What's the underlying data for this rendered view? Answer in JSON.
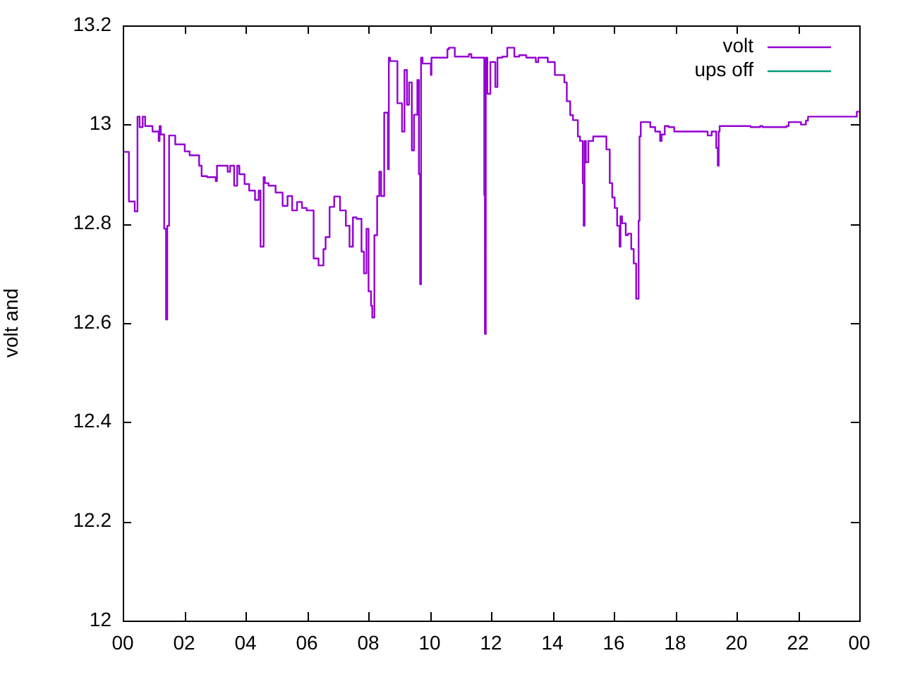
{
  "chart_data": {
    "type": "step",
    "ylabel": "volt and",
    "legend": "top right",
    "grid": false,
    "marker": "none",
    "xlim": [
      0,
      24
    ],
    "xticks": [
      {
        "value": 0,
        "label": "00"
      },
      {
        "value": 2,
        "label": "02"
      },
      {
        "value": 4,
        "label": "04"
      },
      {
        "value": 6,
        "label": "06"
      },
      {
        "value": 8,
        "label": "08"
      },
      {
        "value": 10,
        "label": "10"
      },
      {
        "value": 12,
        "label": "12"
      },
      {
        "value": 14,
        "label": "14"
      },
      {
        "value": 16,
        "label": "16"
      },
      {
        "value": 18,
        "label": "18"
      },
      {
        "value": 20,
        "label": "20"
      },
      {
        "value": 22,
        "label": "22"
      },
      {
        "value": 24,
        "label": "00"
      }
    ],
    "ylim": [
      12,
      13.2
    ],
    "yticks": [
      12,
      12.2,
      12.4,
      12.6,
      12.8,
      13,
      13.2
    ],
    "series": [
      {
        "name": "volt",
        "color": "#9400d3",
        "x": [
          0,
          0.02,
          0.2,
          0.39,
          0.48,
          0.55,
          0.65,
          0.73,
          0.8,
          0.97,
          1.17,
          1.2,
          1.24,
          1.35,
          1.41,
          1.45,
          1.51,
          1.53,
          1.71,
          1.82,
          2.02,
          2.18,
          2.33,
          2.49,
          2.57,
          2.75,
          3.03,
          3.07,
          3.14,
          3.42,
          3.5,
          3.63,
          3.73,
          3.8,
          3.97,
          4.12,
          4.31,
          4.43,
          4.49,
          4.59,
          4.63,
          4.75,
          4.98,
          5.21,
          5.37,
          5.52,
          5.68,
          5.84,
          5.99,
          6.22,
          6.38,
          6.54,
          6.61,
          6.74,
          6.89,
          7.08,
          7.27,
          7.39,
          7.5,
          7.62,
          7.78,
          7.86,
          7.94,
          8.01,
          8.09,
          8.13,
          8.2,
          8.29,
          8.36,
          8.42,
          8.52,
          8.6,
          8.64,
          8.67,
          8.71,
          8.95,
          9.1,
          9.18,
          9.26,
          9.33,
          9.42,
          9.49,
          9.6,
          9.65,
          9.69,
          9.72,
          9.77,
          10.04,
          10.06,
          10.27,
          10.58,
          10.63,
          10.82,
          11.0,
          11.28,
          11.36,
          11.44,
          11.78,
          11.8,
          11.83,
          11.88,
          11.98,
          12.14,
          12.21,
          12.37,
          12.53,
          12.68,
          12.76,
          12.92,
          13.15,
          13.46,
          13.54,
          13.85,
          14.08,
          14.24,
          14.39,
          14.47,
          14.58,
          14.67,
          14.83,
          14.9,
          14.99,
          15.02,
          15.05,
          15.09,
          15.17,
          15.33,
          15.48,
          15.76,
          15.87,
          15.95,
          16.03,
          16.11,
          16.19,
          16.22,
          16.27,
          16.39,
          16.46,
          16.57,
          16.65,
          16.73,
          16.81,
          16.84,
          16.88,
          16.96,
          17.19,
          17.35,
          17.51,
          17.56,
          17.66,
          17.79,
          17.97,
          18.13,
          19.06,
          19.19,
          19.34,
          19.39,
          19.42,
          19.45,
          20.46,
          20.77,
          20.85,
          21.63,
          21.7,
          22.1,
          22.26,
          22.33,
          22.61,
          23.92,
          24
        ],
        "values": [
          12.853,
          12.957,
          12.945,
          12.845,
          12.825,
          13.016,
          12.995,
          13.016,
          12.997,
          12.997,
          12.986,
          12.967,
          12.997,
          12.98,
          12.79,
          12.607,
          12.796,
          12.978,
          12.978,
          12.96,
          12.96,
          12.946,
          12.938,
          12.938,
          12.917,
          12.896,
          12.894,
          12.886,
          12.917,
          12.917,
          12.905,
          12.917,
          12.877,
          12.917,
          12.9,
          12.88,
          12.867,
          12.848,
          12.867,
          12.754,
          12.894,
          12.882,
          12.877,
          12.863,
          12.836,
          12.856,
          12.827,
          12.844,
          12.832,
          12.827,
          12.73,
          12.716,
          12.749,
          12.773,
          12.834,
          12.855,
          12.827,
          12.796,
          12.754,
          12.813,
          12.81,
          12.744,
          12.7,
          12.79,
          12.664,
          12.635,
          12.611,
          12.777,
          12.856,
          12.905,
          12.856,
          13.024,
          13.024,
          12.91,
          13.135,
          13.128,
          13.043,
          12.986,
          13.11,
          13.04,
          13.085,
          12.948,
          13.02,
          13.09,
          12.9,
          12.678,
          13.135,
          13.123,
          13.1,
          13.135,
          13.135,
          13.152,
          13.155,
          13.137,
          13.137,
          13.142,
          13.135,
          13.135,
          12.858,
          12.578,
          13.135,
          13.062,
          13.126,
          13.076,
          13.135,
          13.137,
          13.155,
          13.155,
          13.137,
          13.14,
          13.135,
          13.126,
          13.135,
          13.126,
          13.1,
          13.1,
          13.085,
          13.047,
          13.019,
          13.009,
          12.976,
          12.967,
          12.882,
          12.796,
          12.967,
          12.924,
          12.967,
          12.976,
          12.976,
          12.95,
          12.882,
          12.853,
          12.832,
          12.796,
          12.754,
          12.815,
          12.801,
          12.777,
          12.78,
          12.749,
          12.72,
          12.649,
          12.806,
          12.976,
          13.005,
          13.005,
          12.995,
          12.986,
          12.967,
          12.98,
          12.997,
          12.995,
          12.986,
          12.986,
          12.978,
          12.986,
          12.953,
          12.917,
          12.986,
          12.997,
          12.995,
          12.997,
          12.995,
          12.997,
          13.005,
          13.0,
          13.008,
          13.016,
          13.016,
          13.026
        ]
      },
      {
        "name": "ups off",
        "color": "#009e73"
      }
    ]
  }
}
